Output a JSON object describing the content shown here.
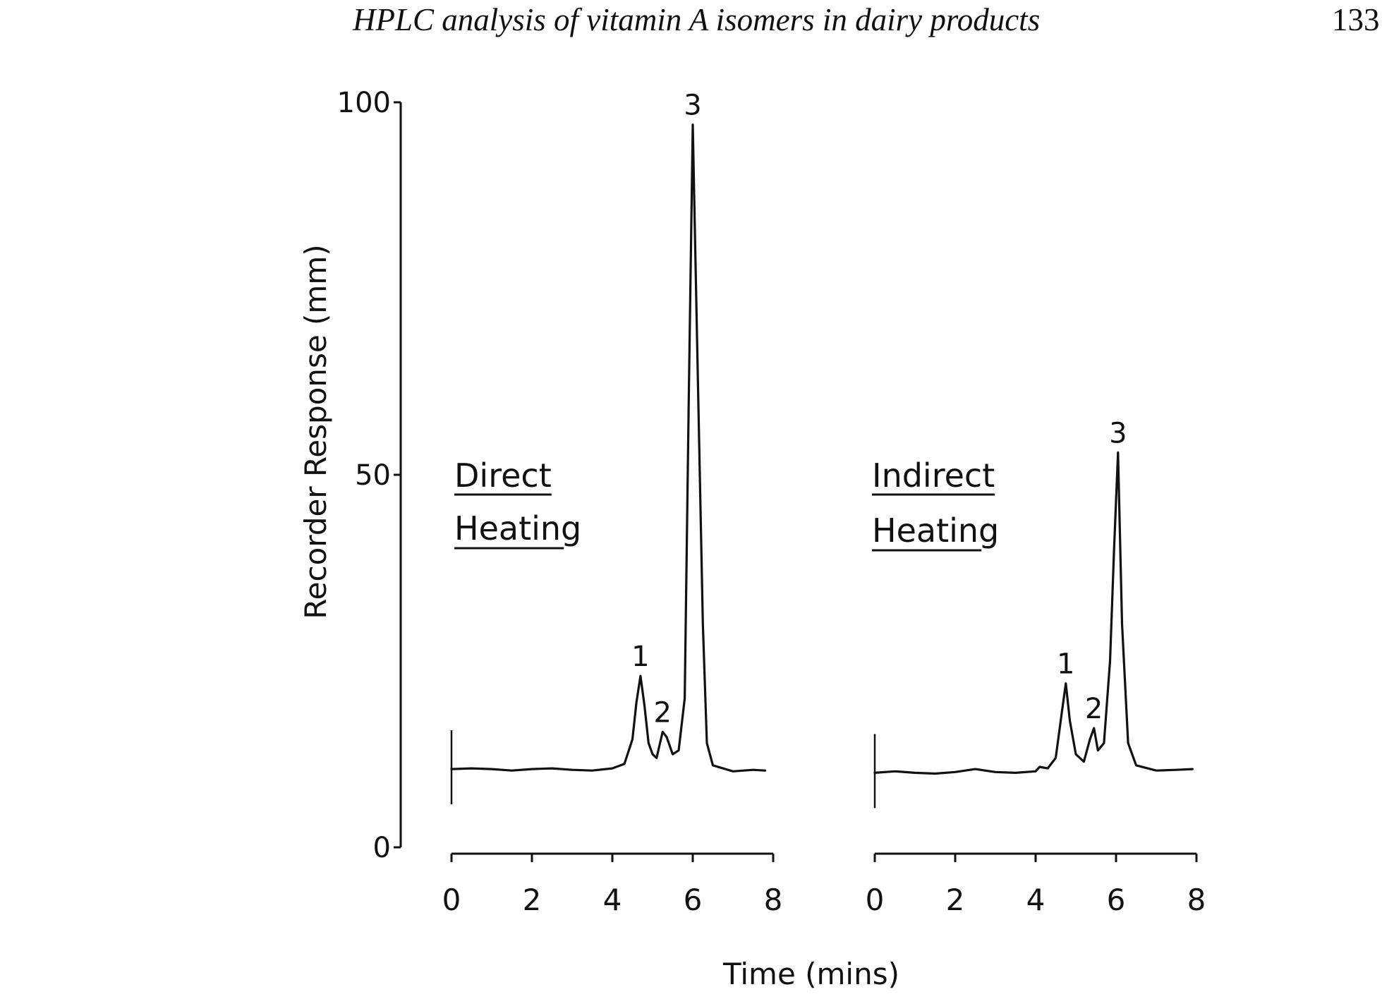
{
  "running_head": {
    "title": "HPLC analysis of vitamin A isomers in dairy products",
    "page_number": "133"
  },
  "colors": {
    "ink": "#111111",
    "paper": "#ffffff"
  },
  "chart_data": [
    {
      "type": "line",
      "panel_title": [
        "Direct",
        "Heating"
      ],
      "xlabel": "Time (mins)",
      "ylabel": "Recorder Response (mm)",
      "xlim": [
        0,
        8
      ],
      "ylim": [
        0,
        100
      ],
      "x_ticks": [
        0,
        2,
        4,
        6,
        8
      ],
      "y_ticks": [
        0,
        50,
        100
      ],
      "peak_labels": [
        {
          "text": "1",
          "x": 4.7,
          "y": 23
        },
        {
          "text": "2",
          "x": 5.25,
          "y": 15.5
        },
        {
          "text": "3",
          "x": 6.0,
          "y": 97
        }
      ],
      "series": [
        {
          "values": [
            [
              0.0,
              10.5
            ],
            [
              0.5,
              10.6
            ],
            [
              1.0,
              10.5
            ],
            [
              1.5,
              10.3
            ],
            [
              2.0,
              10.5
            ],
            [
              2.5,
              10.6
            ],
            [
              3.0,
              10.4
            ],
            [
              3.5,
              10.3
            ],
            [
              4.0,
              10.6
            ],
            [
              4.3,
              11.2
            ],
            [
              4.5,
              14.5
            ],
            [
              4.6,
              19.5
            ],
            [
              4.7,
              23.0
            ],
            [
              4.8,
              19.0
            ],
            [
              4.9,
              14.0
            ],
            [
              5.0,
              12.5
            ],
            [
              5.1,
              12.0
            ],
            [
              5.25,
              15.5
            ],
            [
              5.35,
              14.8
            ],
            [
              5.5,
              12.5
            ],
            [
              5.65,
              13.0
            ],
            [
              5.8,
              20.0
            ],
            [
              5.9,
              60.0
            ],
            [
              6.0,
              97.0
            ],
            [
              6.1,
              70.0
            ],
            [
              6.25,
              30.0
            ],
            [
              6.35,
              14.0
            ],
            [
              6.5,
              11.0
            ],
            [
              7.0,
              10.2
            ],
            [
              7.5,
              10.4
            ],
            [
              7.8,
              10.3
            ]
          ]
        }
      ]
    },
    {
      "type": "line",
      "panel_title": [
        "Indirect",
        "Heating"
      ],
      "xlabel": "Time (mins)",
      "xlim": [
        0,
        8
      ],
      "ylim": [
        0,
        100
      ],
      "x_ticks": [
        0,
        2,
        4,
        6,
        8
      ],
      "peak_labels": [
        {
          "text": "1",
          "x": 4.75,
          "y": 22
        },
        {
          "text": "2",
          "x": 5.45,
          "y": 16
        },
        {
          "text": "3",
          "x": 6.05,
          "y": 53
        }
      ],
      "series": [
        {
          "values": [
            [
              0.0,
              10.0
            ],
            [
              0.5,
              10.2
            ],
            [
              1.0,
              10.0
            ],
            [
              1.5,
              9.9
            ],
            [
              2.0,
              10.1
            ],
            [
              2.5,
              10.5
            ],
            [
              3.0,
              10.1
            ],
            [
              3.5,
              10.0
            ],
            [
              4.0,
              10.2
            ],
            [
              4.1,
              10.8
            ],
            [
              4.3,
              10.6
            ],
            [
              4.5,
              12.0
            ],
            [
              4.65,
              18.0
            ],
            [
              4.75,
              22.0
            ],
            [
              4.85,
              17.0
            ],
            [
              5.0,
              12.5
            ],
            [
              5.2,
              11.5
            ],
            [
              5.35,
              14.5
            ],
            [
              5.45,
              16.0
            ],
            [
              5.55,
              13.0
            ],
            [
              5.7,
              14.0
            ],
            [
              5.85,
              25.0
            ],
            [
              5.95,
              40.0
            ],
            [
              6.05,
              53.0
            ],
            [
              6.15,
              30.0
            ],
            [
              6.3,
              14.0
            ],
            [
              6.5,
              11.0
            ],
            [
              7.0,
              10.3
            ],
            [
              7.5,
              10.4
            ],
            [
              7.9,
              10.5
            ]
          ]
        }
      ]
    }
  ]
}
